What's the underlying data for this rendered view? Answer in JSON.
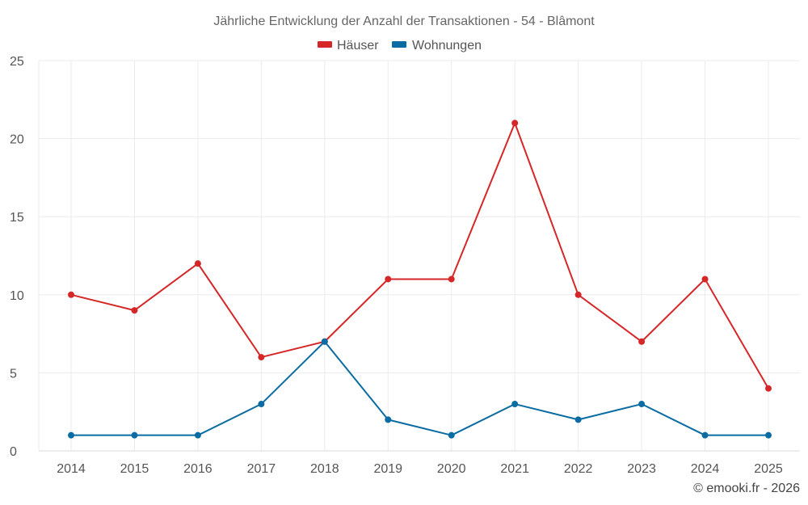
{
  "chart_data": {
    "type": "line",
    "title": "Jährliche Entwicklung der Anzahl der Transaktionen - 54 - Blâmont",
    "categories": [
      "2014",
      "2015",
      "2016",
      "2017",
      "2018",
      "2019",
      "2020",
      "2021",
      "2022",
      "2023",
      "2024",
      "2025"
    ],
    "series": [
      {
        "name": "Häuser",
        "color": "#d62728",
        "values": [
          10,
          9,
          12,
          6,
          7,
          11,
          11,
          21,
          10,
          7,
          11,
          4
        ]
      },
      {
        "name": "Wohnungen",
        "color": "#0a6ca3",
        "values": [
          1,
          1,
          1,
          3,
          7,
          2,
          1,
          3,
          2,
          3,
          1,
          1
        ]
      }
    ],
    "ylim": [
      0,
      25
    ],
    "yticks": [
      0,
      5,
      10,
      15,
      20,
      25
    ],
    "xlabel": "",
    "ylabel": "",
    "grid": true,
    "legend_position": "top-center"
  },
  "credit": "© emooki.fr - 2026"
}
